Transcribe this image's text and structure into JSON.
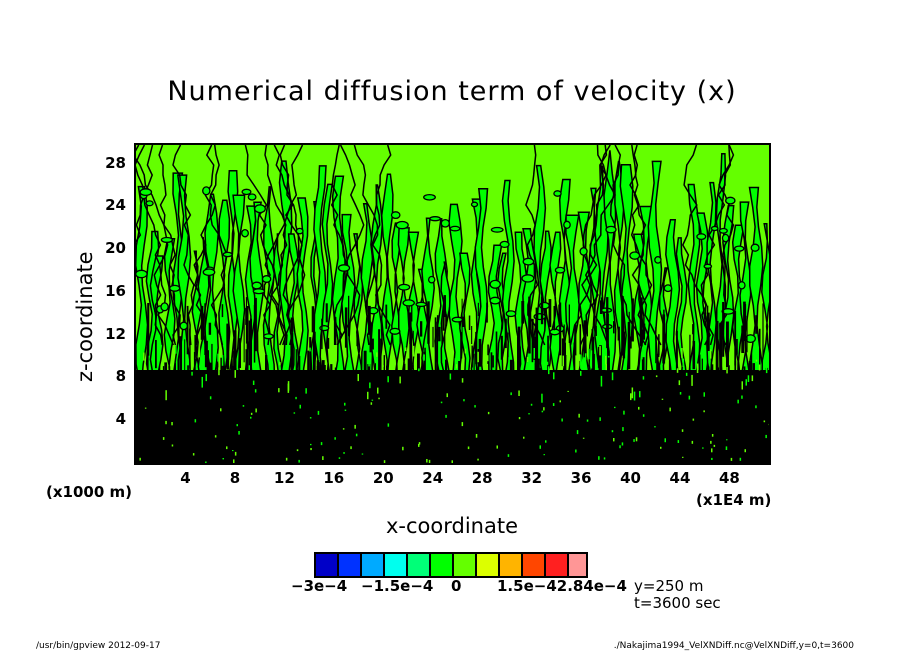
{
  "chart_data": {
    "type": "heatmap",
    "title": "Numerical diffusion term of velocity (x)",
    "xlabel": "x-coordinate",
    "ylabel": "z-coordinate",
    "x_unit_label": "(x1E4 m)",
    "y_unit_label": "(x1000 m)",
    "xlim": [
      0,
      51.2
    ],
    "ylim": [
      0,
      29.75
    ],
    "x_ticks": [
      "4",
      "8",
      "12",
      "16",
      "20",
      "24",
      "28",
      "32",
      "36",
      "40",
      "44",
      "48"
    ],
    "x_tick_values": [
      4,
      8,
      12,
      16,
      20,
      24,
      28,
      32,
      36,
      40,
      44,
      48
    ],
    "y_ticks": [
      "4",
      "8",
      "12",
      "16",
      "20",
      "24",
      "28"
    ],
    "y_tick_values": [
      4,
      8,
      12,
      16,
      20,
      24,
      28
    ],
    "grid": false,
    "contour_lines": true,
    "contour_line_color": "#000000",
    "field_description_levels": {
      "dominant_upper": "#64ff00",
      "dominant_secondary": "#00ff00",
      "lower_dense_contours": "#000000"
    },
    "colorbar": {
      "colors": [
        "#0000c8",
        "#0032ff",
        "#00aaff",
        "#00ffee",
        "#00ff78",
        "#00ff00",
        "#64ff00",
        "#dcff00",
        "#ffb400",
        "#ff4600",
        "#ff2020",
        "#ff9696"
      ],
      "labels": [
        "-3e-4",
        "-1.5e-4",
        "0",
        "1.5e-4",
        "2.84e-4"
      ],
      "label_text": [
        "−3e−4",
        "−1.5e−4",
        "0",
        "1.5e−42.84e−4"
      ],
      "range": [
        -0.0003,
        0.000284
      ]
    },
    "annotations": [
      "y=250 m",
      "t=3600 sec"
    ]
  },
  "footer": {
    "left": "/usr/bin/gpview   2012-09-17",
    "right": "./Nakajima1994_VelXNDiff.nc@VelXNDiff,y=0,t=3600"
  }
}
